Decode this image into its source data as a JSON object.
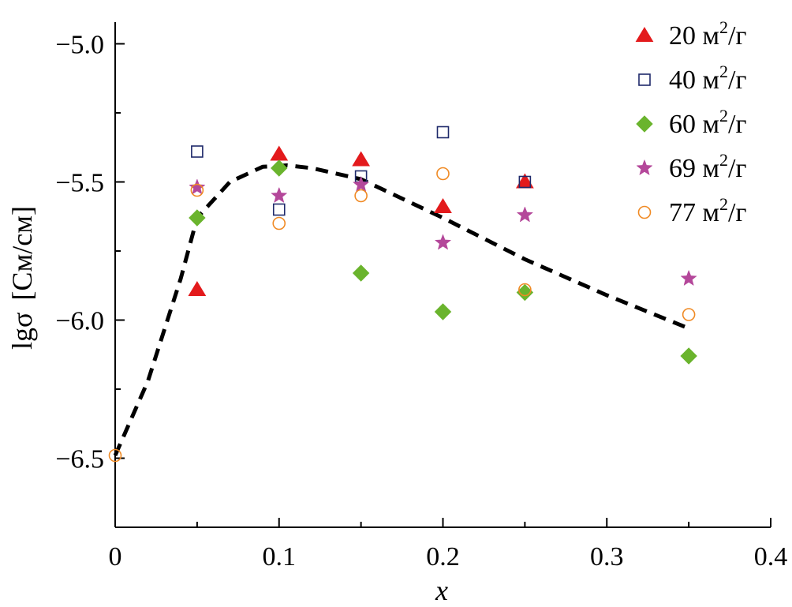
{
  "chart_data": {
    "type": "scatter",
    "xlabel": "x",
    "ylabel_main": "lgσ",
    "ylabel_unit": "[См/см]",
    "xlim": [
      0,
      0.4
    ],
    "ylim": [
      -6.75,
      -4.95
    ],
    "x_ticks": [
      0,
      0.1,
      0.2,
      0.3,
      0.4
    ],
    "x_tick_labels": [
      "0",
      "0.1",
      "0.2",
      "0.3",
      "0.4"
    ],
    "y_ticks": [
      -5.0,
      -5.5,
      -6.0,
      -6.5
    ],
    "y_tick_labels": [
      "−5.0",
      "−5.5",
      "−6.0",
      "−6.5"
    ],
    "grid": false,
    "legend_position": "top-right",
    "series": [
      {
        "name": "20 м²/г",
        "legend_value": "20 м",
        "legend_sup": "2",
        "legend_tail": "/г",
        "marker": "triangle",
        "color": "#e31a1c",
        "filled": true,
        "points": [
          [
            0.05,
            -5.89
          ],
          [
            0.1,
            -5.4
          ],
          [
            0.15,
            -5.42
          ],
          [
            0.2,
            -5.59
          ],
          [
            0.25,
            -5.5
          ]
        ]
      },
      {
        "name": "40 м²/г",
        "legend_value": "40 м",
        "legend_sup": "2",
        "legend_tail": "/г",
        "marker": "square",
        "color": "#1f2a6b",
        "filled": false,
        "points": [
          [
            0.05,
            -5.39
          ],
          [
            0.1,
            -5.6
          ],
          [
            0.15,
            -5.48
          ],
          [
            0.2,
            -5.32
          ],
          [
            0.25,
            -5.5
          ]
        ]
      },
      {
        "name": "60 м²/г",
        "legend_value": "60 м",
        "legend_sup": "2",
        "legend_tail": "/г",
        "marker": "diamond",
        "color": "#6ab42d",
        "filled": true,
        "points": [
          [
            0.05,
            -5.63
          ],
          [
            0.1,
            -5.45
          ],
          [
            0.15,
            -5.83
          ],
          [
            0.2,
            -5.97
          ],
          [
            0.25,
            -5.9
          ],
          [
            0.35,
            -6.13
          ]
        ]
      },
      {
        "name": "69 м²/г",
        "legend_value": "69 м",
        "legend_sup": "2",
        "legend_tail": "/г",
        "marker": "star",
        "color": "#b4479a",
        "filled": true,
        "points": [
          [
            0.05,
            -5.52
          ],
          [
            0.1,
            -5.55
          ],
          [
            0.15,
            -5.51
          ],
          [
            0.2,
            -5.72
          ],
          [
            0.25,
            -5.62
          ],
          [
            0.35,
            -5.85
          ]
        ]
      },
      {
        "name": "77 м²/г",
        "legend_value": "77 м",
        "legend_sup": "2",
        "legend_tail": "/г",
        "marker": "circle",
        "color": "#f08a24",
        "filled": false,
        "points": [
          [
            0,
            -6.49
          ],
          [
            0.05,
            -5.53
          ],
          [
            0.1,
            -5.65
          ],
          [
            0.15,
            -5.55
          ],
          [
            0.2,
            -5.47
          ],
          [
            0.25,
            -5.89
          ],
          [
            0.35,
            -5.98
          ]
        ]
      }
    ],
    "trend_line": {
      "style": "dashed",
      "color": "#000000",
      "points": [
        [
          0,
          -6.49
        ],
        [
          0.02,
          -6.22
        ],
        [
          0.04,
          -5.85
        ],
        [
          0.05,
          -5.63
        ],
        [
          0.07,
          -5.5
        ],
        [
          0.09,
          -5.445
        ],
        [
          0.105,
          -5.44
        ],
        [
          0.12,
          -5.45
        ],
        [
          0.15,
          -5.49
        ],
        [
          0.2,
          -5.63
        ],
        [
          0.25,
          -5.78
        ],
        [
          0.3,
          -5.91
        ],
        [
          0.35,
          -6.03
        ]
      ]
    }
  }
}
